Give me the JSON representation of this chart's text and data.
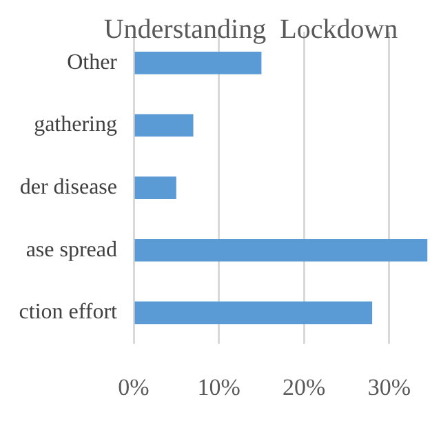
{
  "chart_data": {
    "type": "bar",
    "orientation": "horizontal",
    "title": "Understanding  Lockdown",
    "categories": [
      "Other",
      "gathering",
      "der disease",
      "ase spread",
      "ction effort"
    ],
    "values": [
      15,
      7,
      5,
      34.5,
      28
    ],
    "color": "#5b9bd5",
    "xlim": [
      0,
      34.5
    ],
    "xticks": [
      {
        "value": 0,
        "label": "0%"
      },
      {
        "value": 10,
        "label": "10%"
      },
      {
        "value": 20,
        "label": "20%"
      },
      {
        "value": 30,
        "label": "30%"
      }
    ],
    "grid": "x"
  }
}
